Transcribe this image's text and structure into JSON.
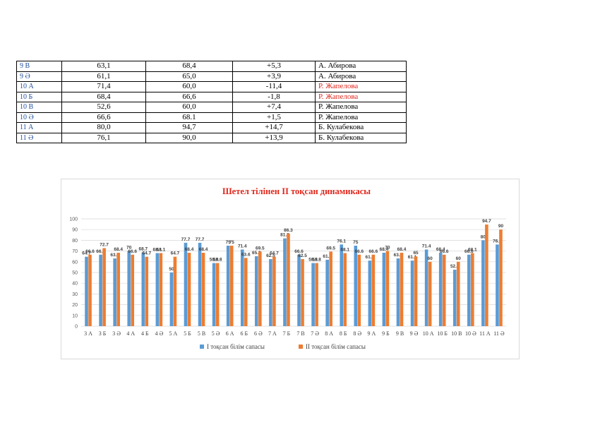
{
  "table": {
    "rows": [
      {
        "cls": "9 В",
        "q1": "63,1",
        "q2": "68,4",
        "diff": "+5,3",
        "teacher": "А. Абирова",
        "red": false
      },
      {
        "cls": "9 Ә",
        "q1": "61,1",
        "q2": "65,0",
        "diff": "+3,9",
        "teacher": "А. Абирова",
        "red": false
      },
      {
        "cls": "10 А",
        "q1": "71,4",
        "q2": "60,0",
        "diff": "-11,4",
        "teacher": "Р. Жапелова",
        "red": true
      },
      {
        "cls": "10 Б",
        "q1": "68,4",
        "q2": "66,6",
        "diff": "-1,8",
        "teacher": "Р. Жапелова",
        "red": true
      },
      {
        "cls": "10 В",
        "q1": "52,6",
        "q2": "60,0",
        "diff": "+7,4",
        "teacher": "Р. Жапелова",
        "red": false
      },
      {
        "cls": "10 Ә",
        "q1": "66,6",
        "q2": "68.1",
        "diff": "+1,5",
        "teacher": "Р. Жапелова",
        "red": false
      },
      {
        "cls": "11 А",
        "q1": "80,0",
        "q2": "94,7",
        "diff": "+14,7",
        "teacher": "Б. Кулабекова",
        "red": false
      },
      {
        "cls": "11 Ә",
        "q1": "76,1",
        "q2": "90,0",
        "diff": "+13,9",
        "teacher": "Б. Кулабекова",
        "red": false
      }
    ]
  },
  "chart_data": {
    "type": "bar",
    "title": "Шетел тілінен ІІ тоқсан динамикасы",
    "categories": [
      "3 А",
      "3 Б",
      "3 Ә",
      "4 А",
      "4 Б",
      "4 Ә",
      "5 А",
      "5 Б",
      "5 В",
      "5 Ә",
      "6 А",
      "6 Б",
      "6 Ә",
      "7 А",
      "7 Б",
      "7 В",
      "7 Ә",
      "8 А",
      "8 Б",
      "8 Ә",
      "9 А",
      "9 Б",
      "9 В",
      "9 Ә",
      "10 А",
      "10 Б",
      "10 В",
      "10 Ә",
      "11 А",
      "11 Ә"
    ],
    "series": [
      {
        "name": "І тоқсан білім сапасы",
        "color": "#5b9bd5",
        "values": [
          64.7,
          66.6,
          63.1,
          70,
          68.7,
          68.1,
          50,
          77.7,
          77.7,
          58.8,
          75,
          71.4,
          65.2,
          62.5,
          81.8,
          66.6,
          58.8,
          61.9,
          76.1,
          75,
          61.1,
          68.4,
          63.1,
          61.1,
          71.4,
          68.4,
          52.6,
          66.6,
          80,
          76.1
        ]
      },
      {
        "name": "ІІ тоқсан білім сапасы",
        "color": "#ed7d31",
        "values": [
          66.6,
          72.7,
          68.4,
          66.6,
          64.7,
          68.1,
          64.7,
          68.4,
          68.4,
          58.8,
          75,
          63.6,
          69.5,
          64.7,
          86.3,
          62.5,
          58.8,
          69.5,
          68.1,
          66.6,
          66.6,
          70,
          68.4,
          65,
          60,
          66.6,
          60,
          68.1,
          94.7,
          90
        ]
      }
    ],
    "ylim": [
      0,
      100
    ],
    "yticks": [
      0,
      10,
      20,
      30,
      40,
      50,
      60,
      70,
      80,
      90,
      100
    ],
    "legend_position": "bottom",
    "grid": true
  }
}
